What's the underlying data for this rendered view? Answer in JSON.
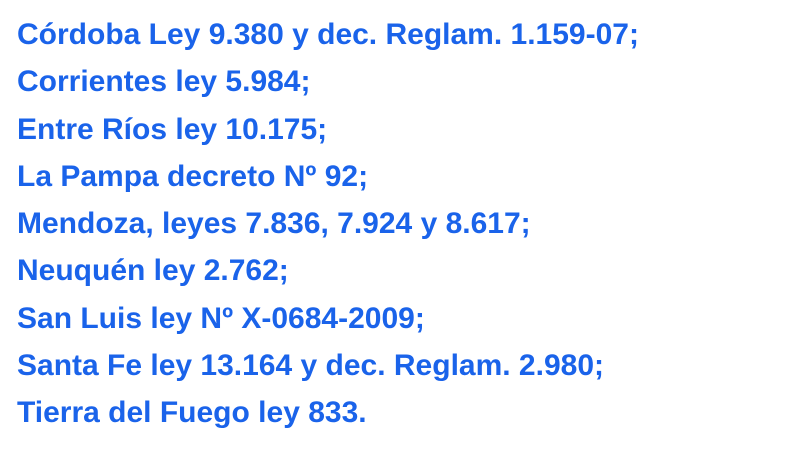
{
  "document": {
    "text_color": "#1a63ea",
    "background_color": "#ffffff",
    "lines": [
      "Córdoba Ley 9.380 y dec. Reglam. 1.159-07;",
      "Corrientes ley 5.984;",
      "Entre Ríos ley 10.175;",
      "La Pampa decreto Nº 92;",
      "Mendoza, leyes 7.836, 7.924 y 8.617;",
      "Neuquén ley 2.762;",
      "San Luis ley Nº X-0684-2009;",
      "Santa Fe ley 13.164 y dec. Reglam. 2.980;",
      "Tierra del Fuego ley 833."
    ]
  }
}
